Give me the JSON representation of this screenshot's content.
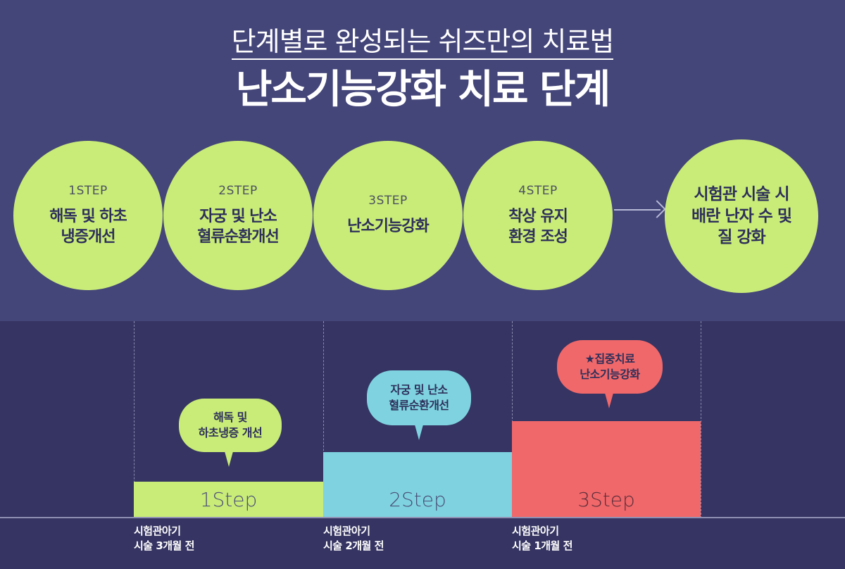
{
  "header": {
    "subtitle": "단계별로 완성되는 쉬즈만의 치료법",
    "title": "난소기능강화 치료 단계"
  },
  "steps": [
    {
      "step": "1STEP",
      "label": "해독 및 하초\n냉증개선"
    },
    {
      "step": "2STEP",
      "label": "자궁 및 난소\n혈류순환개선"
    },
    {
      "step": "3STEP",
      "label": "난소기능강화"
    },
    {
      "step": "4STEP",
      "label": "착상 유지\n환경 조성"
    }
  ],
  "result": {
    "label": "시험관 시술 시\n배란 난자 수 및\n질 강화"
  },
  "timeline": [
    {
      "bar_label": "1Step",
      "bubble": "해독 및\n하초냉증 개선",
      "time": "시험관아기\n시술 3개월 전",
      "level": 1,
      "bar_color": "#c9ec78"
    },
    {
      "bar_label": "2Step",
      "bubble": "자궁 및 난소\n혈류순환개선",
      "time": "시험관아기\n시술 2개월 전",
      "level": 2,
      "bar_color": "#7fd3e0"
    },
    {
      "bar_label": "3Step",
      "bubble": "★집중치료\n난소기능강화",
      "time": "시험관아기\n시술 1개월 전",
      "level": 3,
      "bar_color": "#f0686a"
    }
  ],
  "colors": {
    "background_top": "#444579",
    "background_bottom": "#353462",
    "circle": "#c9ec78"
  }
}
